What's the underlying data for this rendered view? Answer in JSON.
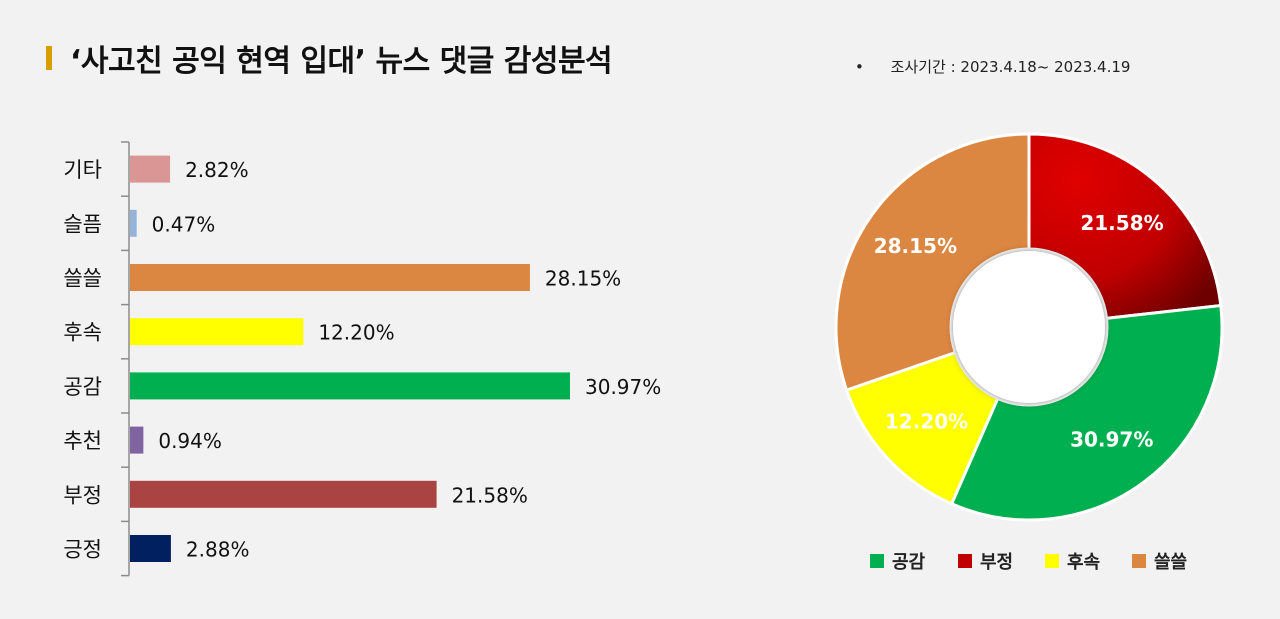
{
  "header": {
    "title": "‘사고친 공익 현역 입대’ 뉴스 댓글 감성분석",
    "period_bullet": "•",
    "period_text": "조사기간 : 2023.4.18~ 2023.4.19"
  },
  "chart_data": [
    {
      "type": "bar",
      "orientation": "horizontal",
      "title": "",
      "categories": [
        "기타",
        "슬픔",
        "쓸쓸",
        "후속",
        "공감",
        "추천",
        "부정",
        "긍정"
      ],
      "values": [
        2.82,
        0.47,
        28.15,
        12.2,
        30.97,
        0.94,
        21.58,
        2.88
      ],
      "value_labels": [
        "2.82%",
        "0.47%",
        "28.15%",
        "12.20%",
        "30.97%",
        "0.94%",
        "21.58%",
        "2.88%"
      ],
      "colors": [
        "#d99694",
        "#95b3d7",
        "#dc8741",
        "#ffff00",
        "#00b050",
        "#8064a2",
        "#a94442",
        "#002060"
      ],
      "xlim": [
        0,
        35
      ],
      "grid": false
    },
    {
      "type": "pie",
      "donut": true,
      "title": "",
      "categories": [
        "부정",
        "공감",
        "후속",
        "쓸쓸"
      ],
      "values": [
        21.58,
        30.97,
        12.2,
        28.15
      ],
      "value_labels": [
        "21.58%",
        "30.97%",
        "12.20%",
        "28.15%"
      ],
      "colors": [
        "#c00000",
        "#00b050",
        "#ffff00",
        "#dc8741"
      ],
      "legend": {
        "placement": "bottom",
        "entries": [
          {
            "name": "공감",
            "color": "#00b050"
          },
          {
            "name": "부정",
            "color": "#c00000"
          },
          {
            "name": "후속",
            "color": "#ffff00"
          },
          {
            "name": "쓸쓸",
            "color": "#dc8741"
          }
        ]
      }
    }
  ]
}
